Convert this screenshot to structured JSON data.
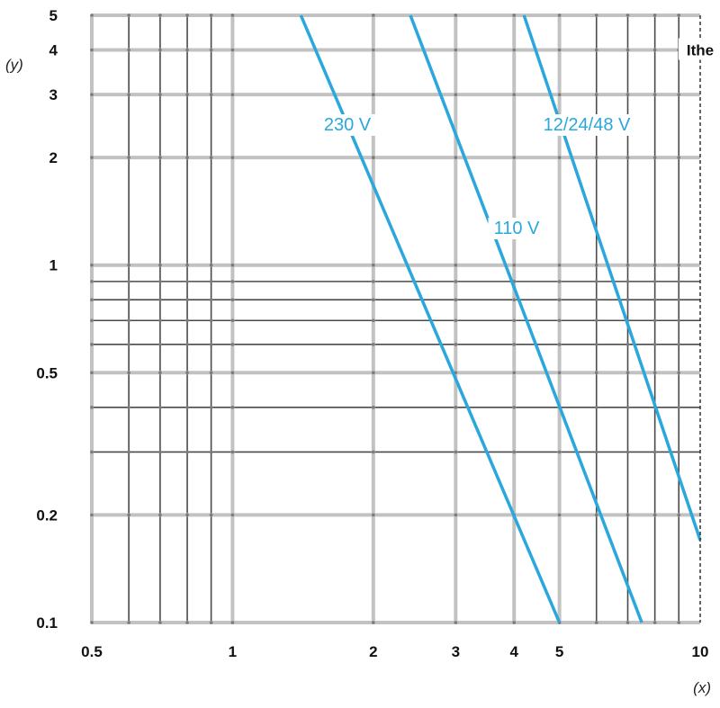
{
  "chart_data": {
    "type": "line",
    "xscale": "log",
    "yscale": "log",
    "xlim": [
      0.5,
      10
    ],
    "ylim": [
      0.1,
      5
    ],
    "grid": true,
    "xlabel": "(x)",
    "ylabel": "(y)",
    "x_ticks": [
      {
        "value": 0.5,
        "label": "0.5"
      },
      {
        "value": 1,
        "label": "1"
      },
      {
        "value": 2,
        "label": "2"
      },
      {
        "value": 3,
        "label": "3"
      },
      {
        "value": 4,
        "label": "4"
      },
      {
        "value": 5,
        "label": "5"
      },
      {
        "value": 10,
        "label": "10"
      }
    ],
    "y_ticks": [
      {
        "value": 0.1,
        "label": "0.1"
      },
      {
        "value": 0.2,
        "label": "0.2"
      },
      {
        "value": 0.5,
        "label": "0.5"
      },
      {
        "value": 1,
        "label": "1"
      },
      {
        "value": 2,
        "label": "2"
      },
      {
        "value": 3,
        "label": "3"
      },
      {
        "value": 4,
        "label": "4"
      },
      {
        "value": 5,
        "label": "5"
      }
    ],
    "x_minor_grid": [
      0.6,
      0.7,
      0.8,
      0.9,
      6,
      7,
      8,
      9
    ],
    "y_minor_grid": [
      0.3,
      0.4,
      0.6,
      0.7,
      0.8,
      0.9
    ],
    "series_color": "#2aa7dc",
    "series": [
      {
        "name": "230 V",
        "x": [
          1.4,
          5.0
        ],
        "y": [
          5.0,
          0.1
        ]
      },
      {
        "name": "110 V",
        "x": [
          2.4,
          7.5
        ],
        "y": [
          5.0,
          0.1
        ]
      },
      {
        "name": "12/24/48 V",
        "x": [
          4.2,
          10.0
        ],
        "y": [
          5.0,
          0.17
        ]
      }
    ],
    "threshold": {
      "label": "Ithe",
      "x": 10
    }
  }
}
